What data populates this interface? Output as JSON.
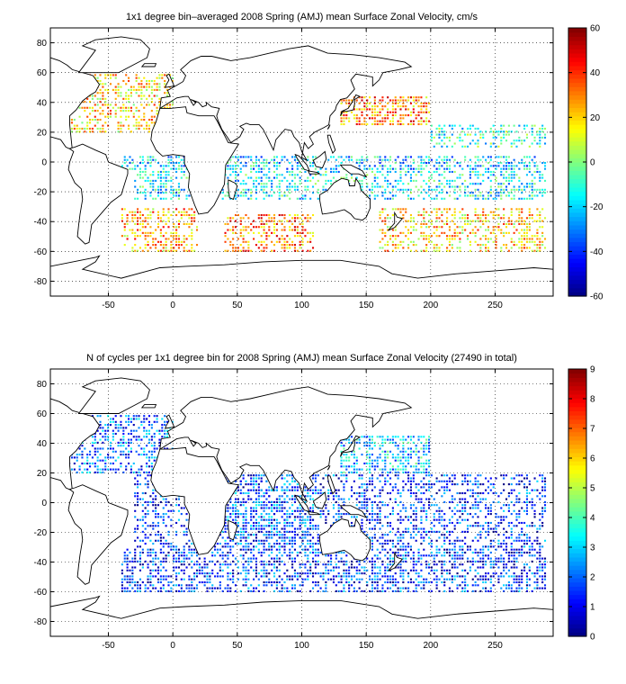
{
  "chart_data": [
    {
      "type": "heatmap",
      "title": "1x1 degree bin–averaged 2008 Spring (AMJ) mean Surface Zonal Velocity, cm/s",
      "xlim": [
        -95,
        295
      ],
      "ylim": [
        -90,
        90
      ],
      "xticks": [
        -50,
        0,
        50,
        100,
        150,
        200,
        250
      ],
      "yticks": [
        80,
        60,
        40,
        20,
        0,
        -20,
        -40,
        -60,
        -80
      ],
      "grid": true,
      "colormap": "jet",
      "colorbar": {
        "ticks": [
          60,
          40,
          20,
          0,
          -20,
          -40,
          -60
        ],
        "range": [
          -60,
          60
        ]
      },
      "regions": [
        {
          "lon": [
            -95,
            0
          ],
          "lat": [
            20,
            60
          ],
          "value": 20,
          "density": 0.45
        },
        {
          "lon": [
            -40,
            20
          ],
          "lat": [
            -60,
            -30
          ],
          "value": 25,
          "density": 0.45
        },
        {
          "lon": [
            40,
            110
          ],
          "lat": [
            -60,
            -35
          ],
          "value": 30,
          "density": 0.5
        },
        {
          "lon": [
            130,
            200
          ],
          "lat": [
            25,
            45
          ],
          "value": 30,
          "density": 0.6
        },
        {
          "lon": [
            -40,
            290
          ],
          "lat": [
            -5,
            5
          ],
          "value": -20,
          "density": 0.5
        },
        {
          "lon": [
            -30,
            290
          ],
          "lat": [
            -25,
            -5
          ],
          "value": -15,
          "density": 0.45
        },
        {
          "lon": [
            160,
            290
          ],
          "lat": [
            -60,
            -30
          ],
          "value": 20,
          "density": 0.45
        },
        {
          "lon": [
            200,
            290
          ],
          "lat": [
            10,
            25
          ],
          "value": -10,
          "density": 0.4
        }
      ]
    },
    {
      "type": "heatmap",
      "title": "N of cycles per 1x1 degree bin for 2008 Spring (AMJ) mean Surface Zonal Velocity (27490 in total)",
      "xlim": [
        -95,
        295
      ],
      "ylim": [
        -90,
        90
      ],
      "xticks": [
        -50,
        0,
        50,
        100,
        150,
        200,
        250
      ],
      "yticks": [
        80,
        60,
        40,
        20,
        0,
        -20,
        -40,
        -60,
        -80
      ],
      "grid": true,
      "colormap": "jet",
      "colorbar": {
        "ticks": [
          9,
          8,
          7,
          6,
          5,
          4,
          3,
          2,
          1,
          0
        ],
        "range": [
          0,
          9
        ]
      },
      "regions": [
        {
          "lon": [
            -95,
            0
          ],
          "lat": [
            20,
            60
          ],
          "value": 2,
          "density": 0.45
        },
        {
          "lon": [
            130,
            200
          ],
          "lat": [
            20,
            45
          ],
          "value": 3,
          "density": 0.6
        },
        {
          "lon": [
            -40,
            290
          ],
          "lat": [
            -60,
            -30
          ],
          "value": 1.5,
          "density": 0.5
        },
        {
          "lon": [
            -30,
            290
          ],
          "lat": [
            -30,
            20
          ],
          "value": 1.5,
          "density": 0.4
        },
        {
          "lon": [
            40,
            110
          ],
          "lat": [
            -30,
            20
          ],
          "value": 2,
          "density": 0.4
        }
      ]
    }
  ]
}
